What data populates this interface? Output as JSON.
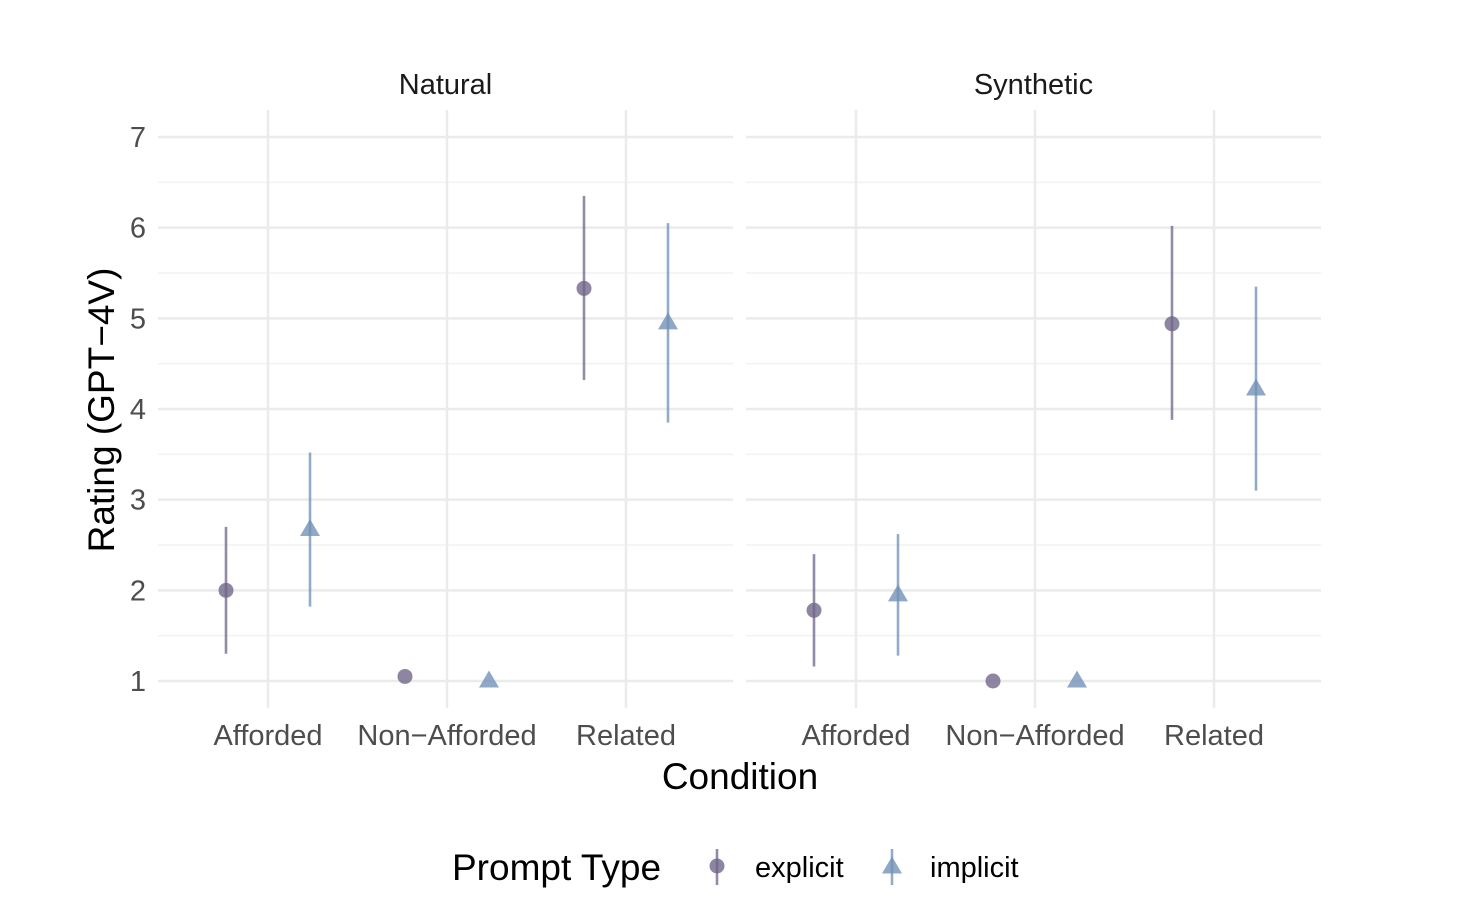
{
  "chart_data": {
    "type": "scatter",
    "subtype": "pointrange (mean with interval), faceted",
    "xlabel": "Condition",
    "ylabel": "Rating (GPT−4V)",
    "ylim": [
      1,
      7
    ],
    "yticks": [
      "1",
      "2",
      "3",
      "4",
      "5",
      "6",
      "7"
    ],
    "categories": [
      "Afforded",
      "Non−Afforded",
      "Related"
    ],
    "grid": true,
    "legend": {
      "title": "Prompt Type",
      "position": "bottom",
      "entries": [
        {
          "name": "explicit",
          "shape": "circle",
          "color": "#6e6487"
        },
        {
          "name": "implicit",
          "shape": "triangle",
          "color": "#6f8fb6"
        }
      ]
    },
    "facets": [
      {
        "title": "Natural",
        "series": [
          {
            "name": "explicit",
            "mean": [
              2.0,
              1.05,
              5.33
            ],
            "low": [
              1.3,
              null,
              4.32
            ],
            "high": [
              2.7,
              null,
              6.35
            ]
          },
          {
            "name": "implicit",
            "mean": [
              2.67,
              1.0,
              4.95
            ],
            "low": [
              1.82,
              null,
              3.85
            ],
            "high": [
              3.52,
              null,
              6.05
            ]
          }
        ]
      },
      {
        "title": "Synthetic",
        "series": [
          {
            "name": "explicit",
            "mean": [
              1.78,
              1.0,
              4.94
            ],
            "low": [
              1.16,
              null,
              3.88
            ],
            "high": [
              2.4,
              null,
              6.02
            ]
          },
          {
            "name": "implicit",
            "mean": [
              1.95,
              1.0,
              4.22
            ],
            "low": [
              1.28,
              null,
              3.1
            ],
            "high": [
              2.62,
              null,
              5.35
            ]
          }
        ]
      }
    ]
  }
}
